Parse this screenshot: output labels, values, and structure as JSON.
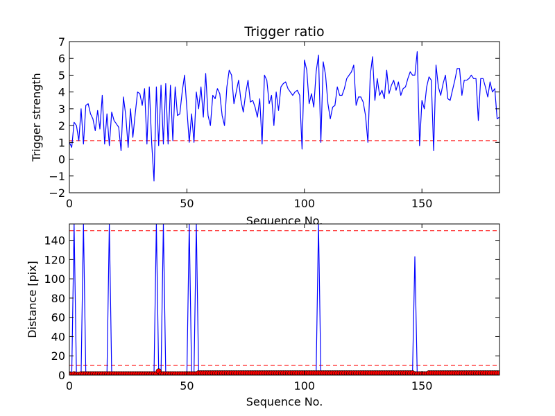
{
  "chart_data": [
    {
      "type": "line",
      "title": "Trigger ratio",
      "xlabel": "Sequence No.",
      "ylabel": "Trigger strength",
      "xlim": [
        0,
        183
      ],
      "ylim": [
        -2,
        7
      ],
      "xticks": [
        0,
        50,
        100,
        150
      ],
      "yticks": [
        -2,
        -1,
        0,
        1,
        2,
        3,
        4,
        5,
        6,
        7
      ],
      "xtick_labels": [
        "0",
        "50",
        "100",
        "150"
      ],
      "ytick_labels": [
        "−2",
        "−1",
        "0",
        "1",
        "2",
        "3",
        "4",
        "5",
        "6",
        "7"
      ],
      "grid": false,
      "series": [
        {
          "color": "#0000ff",
          "values": [
            1.0,
            0.7,
            2.2,
            2.0,
            1.1,
            3.0,
            0.9,
            3.2,
            3.3,
            2.7,
            2.4,
            1.7,
            2.9,
            1.8,
            3.8,
            0.9,
            2.7,
            0.8,
            2.8,
            2.3,
            2.1,
            1.9,
            0.5,
            3.7,
            2.6,
            0.7,
            3.0,
            1.3,
            2.7,
            4.0,
            3.9,
            3.2,
            4.2,
            0.9,
            4.3,
            1.0,
            -1.3,
            4.3,
            0.8,
            4.4,
            0.9,
            4.5,
            0.9,
            4.4,
            1.1,
            4.3,
            2.6,
            2.7,
            4.0,
            5.0,
            3.0,
            1.0,
            2.7,
            1.0,
            4.0,
            3.0,
            4.3,
            2.5,
            5.1,
            2.6,
            2.0,
            3.8,
            3.6,
            4.2,
            3.9,
            2.6,
            2.0,
            4.3,
            5.3,
            5.0,
            3.3,
            4.0,
            4.7,
            3.5,
            2.8,
            3.9,
            4.7,
            3.4,
            3.5,
            3.1,
            2.5,
            3.6,
            0.9,
            5.0,
            4.7,
            3.3,
            3.8,
            2.0,
            4.0,
            2.9,
            4.3,
            4.5,
            4.6,
            4.2,
            4.0,
            3.8,
            4.0,
            4.1,
            3.8,
            0.6,
            5.9,
            5.3,
            3.3,
            3.9,
            3.1,
            5.2,
            6.2,
            1.0,
            5.8,
            5.0,
            3.3,
            2.4,
            3.1,
            3.2,
            4.3,
            3.8,
            3.8,
            4.2,
            4.8,
            5.0,
            5.2,
            5.6,
            3.2,
            3.7,
            3.7,
            3.4,
            2.6,
            1.0,
            5.0,
            6.1,
            3.5,
            4.8,
            3.8,
            4.1,
            3.6,
            5.3,
            3.9,
            4.4,
            4.7,
            4.1,
            4.6,
            3.8,
            4.2,
            4.3,
            4.8,
            5.2,
            5.0,
            5.0,
            6.4,
            0.8,
            3.5,
            3.0,
            4.3,
            4.9,
            4.7,
            0.5,
            5.6,
            4.3,
            3.8,
            4.5,
            5.0,
            3.6,
            3.5,
            4.1,
            4.7,
            5.4,
            5.4,
            3.8,
            4.7,
            4.7,
            4.8,
            5.0,
            4.8,
            4.8,
            2.3,
            4.8,
            4.8,
            4.3,
            3.7,
            4.6,
            4.0,
            4.2,
            2.4,
            2.5
          ]
        }
      ],
      "reference_lines": [
        {
          "y": 1.1,
          "color": "#ff0000",
          "style": "dashed"
        }
      ]
    },
    {
      "type": "line",
      "title": "",
      "xlabel": "Sequence No.",
      "ylabel": "Distance [pix]",
      "xlim": [
        0,
        183
      ],
      "ylim": [
        0,
        157
      ],
      "xticks": [
        0,
        50,
        100,
        150
      ],
      "yticks": [
        0,
        20,
        40,
        60,
        80,
        100,
        120,
        140
      ],
      "xtick_labels": [
        "0",
        "50",
        "100",
        "150"
      ],
      "ytick_labels": [
        "0",
        "20",
        "40",
        "60",
        "80",
        "100",
        "120",
        "140"
      ],
      "grid": false,
      "series": [
        {
          "color": "#0000ff",
          "values": [
            1,
            0.5,
            157,
            0.5,
            0.5,
            1,
            157,
            1,
            1,
            1,
            1,
            1,
            1,
            1,
            1,
            1,
            1,
            157,
            1,
            1,
            1,
            1,
            1,
            1,
            1,
            1,
            1,
            1,
            1,
            1,
            1,
            1,
            1,
            1,
            1,
            1,
            1,
            157,
            4,
            1,
            157,
            1,
            1,
            1,
            1,
            1,
            1,
            1,
            1,
            1,
            1,
            157,
            1,
            1,
            157,
            2,
            2,
            2,
            2,
            2,
            2,
            2,
            2,
            2,
            2,
            2,
            2,
            2,
            2,
            2,
            2,
            2,
            2,
            2,
            2,
            2,
            2,
            2,
            2,
            2,
            2,
            2,
            2,
            2,
            2,
            2,
            2,
            2,
            2,
            2,
            2,
            2,
            2,
            2,
            2,
            2,
            2,
            2,
            2,
            2,
            2,
            2,
            2,
            2,
            2,
            2,
            157,
            2,
            2,
            2,
            2,
            2,
            2,
            2,
            2,
            2,
            2,
            2,
            2,
            2,
            2,
            2,
            2,
            2,
            2,
            2,
            2,
            2,
            2,
            2,
            2,
            2,
            2,
            2,
            2,
            2,
            2,
            2,
            2,
            2,
            2,
            2,
            2,
            2,
            2,
            2,
            2,
            123,
            1,
            1,
            1,
            1,
            1,
            2,
            2,
            2,
            2,
            2,
            2,
            2,
            2,
            2,
            2,
            2,
            2,
            2,
            2,
            2,
            2,
            2,
            2,
            2,
            2,
            2,
            2,
            2,
            2,
            2,
            2,
            2,
            2,
            2,
            2,
            2,
            2
          ]
        },
        {
          "color": "#ff0000",
          "marker": "circle",
          "values": [
            1,
            0.5,
            1,
            0.5,
            0.5,
            1,
            1,
            1,
            1,
            1,
            1,
            1,
            1,
            1,
            1,
            1,
            1,
            1,
            1,
            1,
            1,
            1,
            1,
            1,
            1,
            1,
            1,
            1,
            1,
            1,
            1,
            1,
            1,
            1,
            1,
            1,
            1,
            1,
            4,
            1,
            1,
            1,
            1,
            1,
            1,
            1,
            1,
            1,
            1,
            1,
            1,
            1,
            1,
            1,
            1,
            2,
            2,
            2,
            2,
            2,
            2,
            2,
            2,
            2,
            2,
            2,
            2,
            2,
            2,
            2,
            2,
            2,
            2,
            2,
            2,
            2,
            2,
            2,
            2,
            2,
            2,
            2,
            2,
            2,
            2,
            2,
            2,
            2,
            2,
            2,
            2,
            2,
            2,
            2,
            2,
            2,
            2,
            2,
            2,
            2,
            2,
            2,
            2,
            2,
            2,
            2,
            2,
            2,
            2,
            2,
            2,
            2,
            2,
            2,
            2,
            2,
            2,
            2,
            2,
            2,
            2,
            2,
            2,
            2,
            2,
            2,
            2,
            2,
            2,
            2,
            2,
            2,
            2,
            2,
            2,
            2,
            2,
            2,
            2,
            2,
            2,
            2,
            2,
            2,
            2,
            2,
            2,
            1,
            1,
            1,
            1,
            1,
            1,
            2,
            2,
            2,
            2,
            2,
            2,
            2,
            2,
            2,
            2,
            2,
            2,
            2,
            2,
            2,
            2,
            2,
            2,
            2,
            2,
            2,
            2,
            2,
            2,
            2,
            2,
            2,
            2,
            2,
            2,
            2,
            2
          ]
        }
      ],
      "reference_lines": [
        {
          "y": 150,
          "color": "#ff0000",
          "style": "dashed"
        },
        {
          "y": 10,
          "color": "#ff0000",
          "style": "dashed"
        }
      ]
    }
  ]
}
